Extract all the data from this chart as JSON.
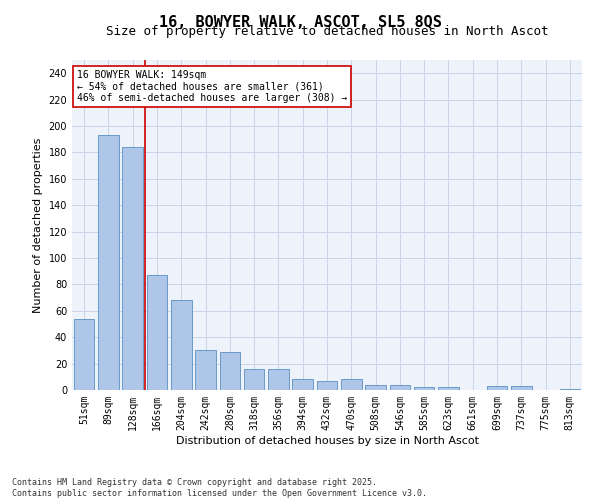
{
  "title": "16, BOWYER WALK, ASCOT, SL5 8QS",
  "subtitle": "Size of property relative to detached houses in North Ascot",
  "xlabel": "Distribution of detached houses by size in North Ascot",
  "ylabel": "Number of detached properties",
  "categories": [
    "51sqm",
    "89sqm",
    "128sqm",
    "166sqm",
    "204sqm",
    "242sqm",
    "280sqm",
    "318sqm",
    "356sqm",
    "394sqm",
    "432sqm",
    "470sqm",
    "508sqm",
    "546sqm",
    "585sqm",
    "623sqm",
    "661sqm",
    "699sqm",
    "737sqm",
    "775sqm",
    "813sqm"
  ],
  "values": [
    54,
    193,
    184,
    87,
    68,
    30,
    29,
    16,
    16,
    8,
    7,
    8,
    4,
    4,
    2,
    2,
    0,
    3,
    3,
    0,
    1
  ],
  "bar_color": "#aec6e8",
  "bar_edge_color": "#5a8fc0",
  "background_color": "#eef2fa",
  "grid_color": "#c8d4e8",
  "vline_x_index": 2.5,
  "vline_color": "#cc0000",
  "annotation_text": "16 BOWYER WALK: 149sqm\n← 54% of detached houses are smaller (361)\n46% of semi-detached houses are larger (308) →",
  "annotation_box_color": "#cc0000",
  "ylim": [
    0,
    250
  ],
  "yticks": [
    0,
    20,
    40,
    60,
    80,
    100,
    120,
    140,
    160,
    180,
    200,
    220,
    240
  ],
  "footer_text": "Contains HM Land Registry data © Crown copyright and database right 2025.\nContains public sector information licensed under the Open Government Licence v3.0.",
  "title_fontsize": 11,
  "subtitle_fontsize": 9,
  "axis_label_fontsize": 8,
  "tick_fontsize": 7,
  "annotation_fontsize": 7,
  "footer_fontsize": 6
}
